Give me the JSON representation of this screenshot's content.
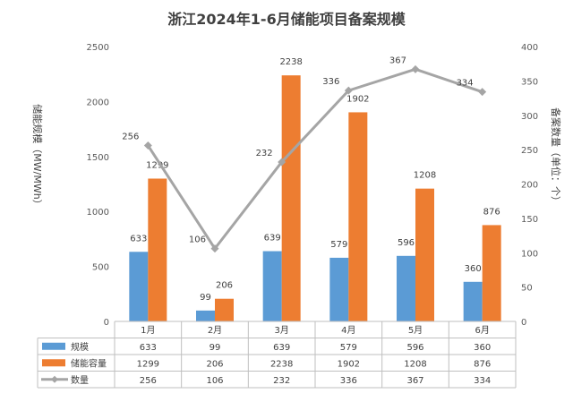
{
  "chart_data": {
    "type": "bar",
    "title": "浙江2024年1-6月储能项目备案规模",
    "categories": [
      "1月",
      "2月",
      "3月",
      "4月",
      "5月",
      "6月"
    ],
    "ylabel": "储能规模（MW/MWh）",
    "y2label": "备案数量（单位：个）",
    "ylim": [
      0,
      2500
    ],
    "y2lim": [
      0,
      400
    ],
    "yticks": [
      0,
      500,
      1000,
      1500,
      2000,
      2500
    ],
    "y2ticks": [
      0,
      50,
      100,
      150,
      200,
      250,
      300,
      350,
      400
    ],
    "grid": false,
    "legend": "table",
    "series": [
      {
        "name": "规模",
        "type": "bar",
        "axis": "left",
        "color": "#5B9BD5",
        "values": [
          633,
          99,
          639,
          579,
          596,
          360
        ]
      },
      {
        "name": "储能容量",
        "type": "bar",
        "axis": "left",
        "color": "#ED7D31",
        "values": [
          1299,
          206,
          2238,
          1902,
          1208,
          876
        ]
      },
      {
        "name": "数量",
        "type": "line",
        "axis": "right",
        "color": "#A5A5A5",
        "values": [
          256,
          106,
          232,
          336,
          367,
          334
        ]
      }
    ]
  }
}
